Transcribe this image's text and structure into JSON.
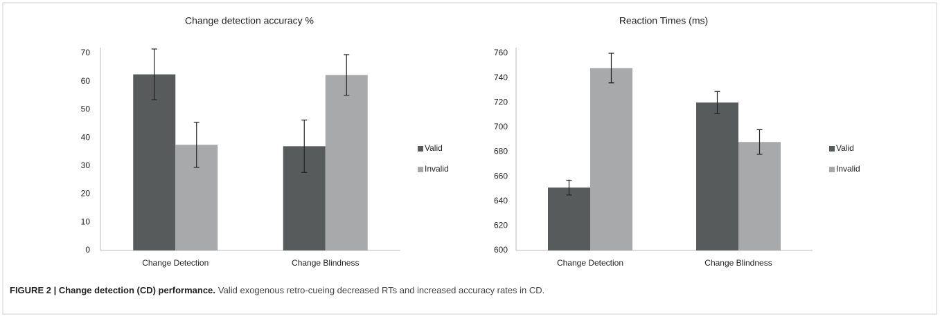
{
  "chart_data": [
    {
      "type": "bar",
      "title": "Change detection accuracy %",
      "categories": [
        "Change Detection",
        "Change Blindness"
      ],
      "series": [
        {
          "name": "Valid",
          "color": "#575b5c",
          "values": [
            62.5,
            37
          ],
          "errors": [
            9,
            9.3
          ]
        },
        {
          "name": "Invalid",
          "color": "#a7a9aa",
          "values": [
            37.5,
            62.3
          ],
          "errors": [
            8,
            7.2
          ]
        }
      ],
      "ylim": [
        0,
        70
      ],
      "yticks": [
        0,
        10,
        20,
        30,
        40,
        50,
        60,
        70
      ],
      "grid": false,
      "legend": "right"
    },
    {
      "type": "bar",
      "title": "Reaction Times (ms)",
      "categories": [
        "Change Detection",
        "Change Blindness"
      ],
      "series": [
        {
          "name": "Valid",
          "color": "#575b5c",
          "values": [
            651,
            720
          ],
          "errors": [
            6,
            9
          ]
        },
        {
          "name": "Invalid",
          "color": "#a7a9aa",
          "values": [
            748,
            688
          ],
          "errors": [
            12,
            10
          ]
        }
      ],
      "ylim": [
        600,
        760
      ],
      "yticks": [
        600,
        620,
        640,
        660,
        680,
        700,
        720,
        740,
        760
      ],
      "grid": false,
      "legend": "right"
    }
  ],
  "caption": {
    "label": "FIGURE 2 | Change detection (CD) performance.",
    "text": "Valid exogenous retro-cueing decreased RTs and increased accuracy rates in CD."
  }
}
